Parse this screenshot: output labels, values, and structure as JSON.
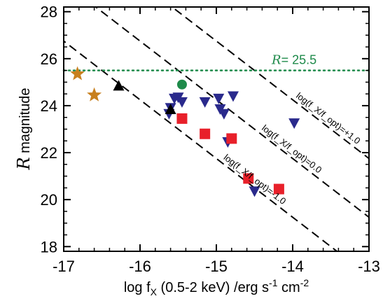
{
  "chart_data": {
    "type": "scatter",
    "title": "",
    "xlabel": "log f_X (0.5-2 keV) /erg s^-1 cm^-2",
    "ylabel": "R magnitude",
    "xlim": [
      -17,
      -13
    ],
    "ylim": [
      17.8,
      28.2
    ],
    "xticks": [
      "-17",
      "-16",
      "-15",
      "-14",
      "-13"
    ],
    "yticks": [
      "18",
      "20",
      "22",
      "24",
      "26",
      "28"
    ],
    "grid": false,
    "legend": "none",
    "reference_lines": [
      {
        "label": "log(f_X/f_opt)=+1.0",
        "slope": -2.5,
        "intercept": -10.75,
        "style": "dashed"
      },
      {
        "label": "log(f_X/f_opt)=0.0",
        "slope": -2.5,
        "intercept": -13.25,
        "style": "dashed"
      },
      {
        "label": "log(f_X/f_opt)=-1.0",
        "slope": -2.5,
        "intercept": -15.75,
        "style": "dashed"
      }
    ],
    "limit_line": {
      "label": "= 25.5",
      "symbol": "R",
      "y": 25.5,
      "style": "dotted",
      "color": "#1e8a4a"
    },
    "series": [
      {
        "marker": "down-triangle",
        "color": "#2a2a8c",
        "points": [
          {
            "x": -15.55,
            "y": 24.3
          },
          {
            "x": -15.5,
            "y": 24.35
          },
          {
            "x": -15.45,
            "y": 24.15
          },
          {
            "x": -15.6,
            "y": 23.9
          },
          {
            "x": -15.62,
            "y": 23.65
          },
          {
            "x": -15.15,
            "y": 24.15
          },
          {
            "x": -14.97,
            "y": 24.3
          },
          {
            "x": -14.78,
            "y": 24.4
          },
          {
            "x": -14.95,
            "y": 23.85
          },
          {
            "x": -14.9,
            "y": 23.65
          },
          {
            "x": -14.85,
            "y": 22.45
          },
          {
            "x": -14.5,
            "y": 20.35
          },
          {
            "x": -13.98,
            "y": 23.25
          }
        ]
      },
      {
        "marker": "square",
        "color": "#e8202a",
        "points": [
          {
            "x": -15.45,
            "y": 23.45
          },
          {
            "x": -15.15,
            "y": 22.8
          },
          {
            "x": -14.8,
            "y": 22.6
          },
          {
            "x": -14.58,
            "y": 20.9
          },
          {
            "x": -14.18,
            "y": 20.45
          }
        ]
      },
      {
        "marker": "up-triangle",
        "color": "#000000",
        "points": [
          {
            "x": -16.28,
            "y": 24.85
          },
          {
            "x": -15.6,
            "y": 23.85
          }
        ]
      },
      {
        "marker": "star",
        "color": "#c8801e",
        "points": [
          {
            "x": -16.82,
            "y": 25.35
          },
          {
            "x": -16.6,
            "y": 24.45
          }
        ]
      },
      {
        "marker": "circle",
        "color": "#1e8a4a",
        "points": [
          {
            "x": -15.45,
            "y": 24.9
          }
        ]
      }
    ]
  }
}
